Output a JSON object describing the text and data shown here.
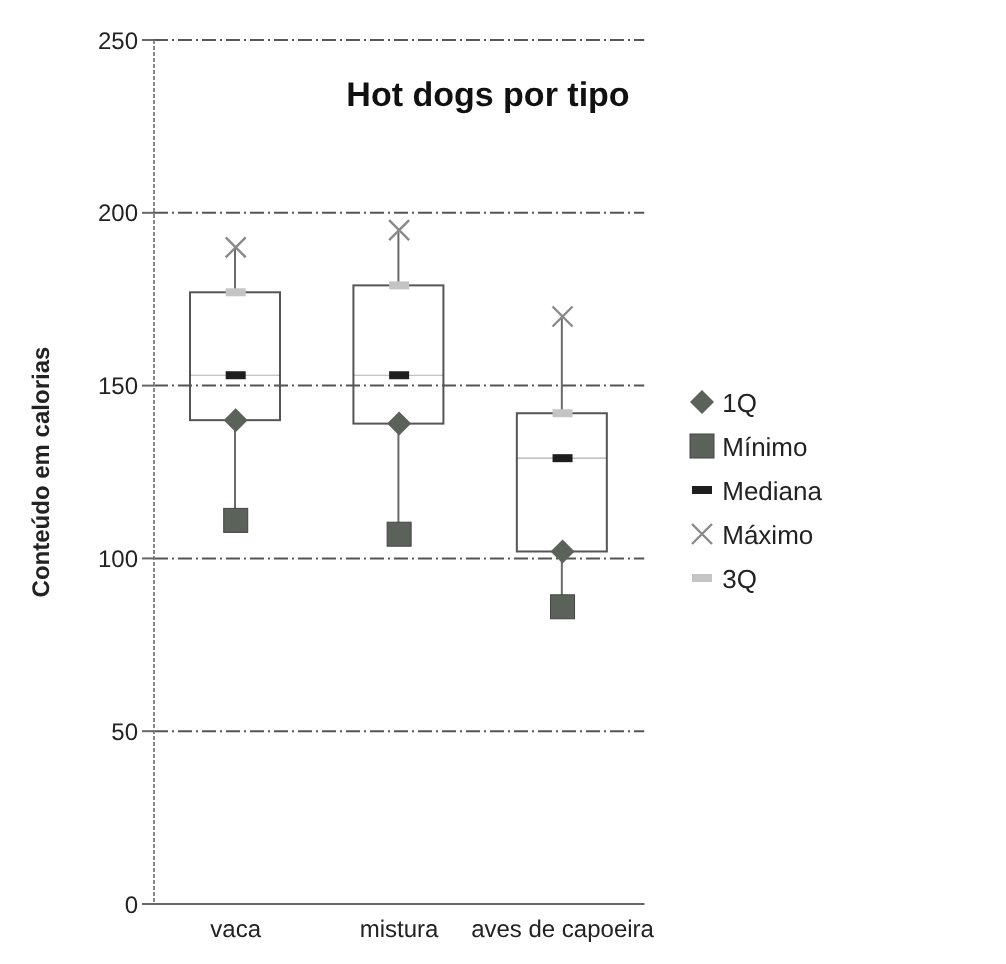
{
  "chart_data": {
    "type": "box",
    "title": "Hot dogs por tipo",
    "ylabel": "Conteúdo em calorias",
    "categories": [
      "vaca",
      "mistura",
      "aves de capoeira"
    ],
    "boxes": [
      {
        "low": 111,
        "q1": 140,
        "median": 153,
        "q3": 177,
        "high": 190
      },
      {
        "low": 107,
        "q1": 139,
        "median": 153,
        "q3": 179,
        "high": 195
      },
      {
        "low": 86,
        "q1": 102,
        "median": 129,
        "q3": 142,
        "high": 170
      }
    ],
    "series": [
      {
        "name": "1Q",
        "type": "scatter",
        "marker": "diamond",
        "color": "#5a625a",
        "values": [
          140,
          139,
          102
        ]
      },
      {
        "name": "Mínimo",
        "type": "scatter",
        "marker": "square",
        "color": "#5a625a",
        "values": [
          111,
          107,
          86
        ]
      },
      {
        "name": "Mediana",
        "type": "scatter",
        "color": "#1e1e1e",
        "values": [
          153,
          153,
          129
        ]
      },
      {
        "name": "Máximo",
        "type": "scatter",
        "marker": "cross",
        "color": "#8a8a8a",
        "values": [
          190,
          195,
          170
        ]
      },
      {
        "name": "3Q",
        "type": "scatter",
        "color": "#c4c4c4",
        "values": [
          177,
          179,
          142
        ]
      }
    ],
    "ylim": [
      0,
      250
    ],
    "yticks": [
      0,
      50,
      100,
      150,
      200,
      250
    ],
    "grid": "y",
    "legend": "right"
  }
}
